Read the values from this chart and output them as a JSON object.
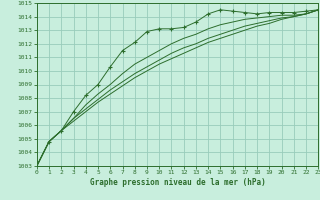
{
  "title": "Graphe pression niveau de la mer (hPa)",
  "bg_color": "#c8eedd",
  "grid_color": "#99ccbb",
  "line_color": "#2d6e2d",
  "x_min": 0,
  "x_max": 23,
  "y_min": 1003,
  "y_max": 1015,
  "series": [
    [
      1003.0,
      1004.8,
      1005.6,
      1007.0,
      1008.2,
      1009.0,
      1010.3,
      1011.5,
      1012.1,
      1012.9,
      1013.1,
      1013.1,
      1013.2,
      1013.6,
      1014.2,
      1014.5,
      1014.4,
      1014.3,
      1014.2,
      1014.3,
      1014.3,
      1014.3,
      1014.4,
      1014.5
    ],
    [
      1003.0,
      1004.8,
      1005.6,
      1006.5,
      1007.5,
      1008.3,
      1009.0,
      1009.8,
      1010.5,
      1011.0,
      1011.5,
      1012.0,
      1012.4,
      1012.7,
      1013.1,
      1013.4,
      1013.6,
      1013.8,
      1013.9,
      1014.0,
      1014.1,
      1014.1,
      1014.2,
      1014.5
    ],
    [
      1003.0,
      1004.8,
      1005.6,
      1006.5,
      1007.2,
      1007.9,
      1008.6,
      1009.2,
      1009.8,
      1010.3,
      1010.8,
      1011.3,
      1011.7,
      1012.0,
      1012.4,
      1012.7,
      1013.0,
      1013.3,
      1013.5,
      1013.7,
      1013.9,
      1014.0,
      1014.2,
      1014.5
    ],
    [
      1003.0,
      1004.8,
      1005.6,
      1006.3,
      1007.0,
      1007.7,
      1008.3,
      1008.9,
      1009.5,
      1010.0,
      1010.5,
      1010.9,
      1011.3,
      1011.7,
      1012.1,
      1012.4,
      1012.7,
      1013.0,
      1013.3,
      1013.5,
      1013.8,
      1014.0,
      1014.2,
      1014.5
    ]
  ],
  "marker_series": 0
}
